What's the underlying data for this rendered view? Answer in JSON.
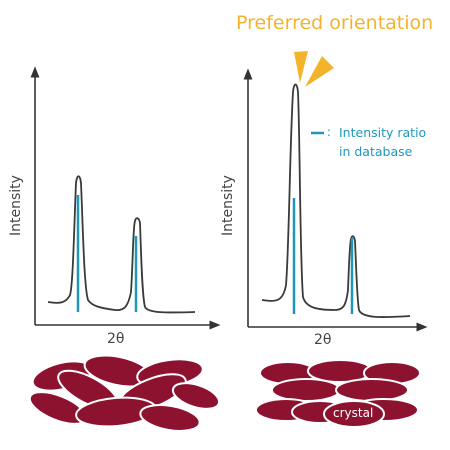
{
  "title": "Preferred orientation",
  "legend": {
    "marker": "— :",
    "line1": "Intensity ratio",
    "line2": "in database"
  },
  "left_panel": {
    "y_label": "Intensity",
    "x_label": "2θ"
  },
  "right_panel": {
    "y_label": "Intensity",
    "x_label": "2θ"
  },
  "crystal_label": "crystal",
  "colors": {
    "curve": "#3a3a3a",
    "reference_bar": "#1f97bd",
    "title": "#f3b42c",
    "crystal_fill": "#8c1230",
    "crystal_stroke": "#ffffff",
    "axis": "#333333"
  },
  "icons": [
    "orientation-indicator-icon"
  ]
}
